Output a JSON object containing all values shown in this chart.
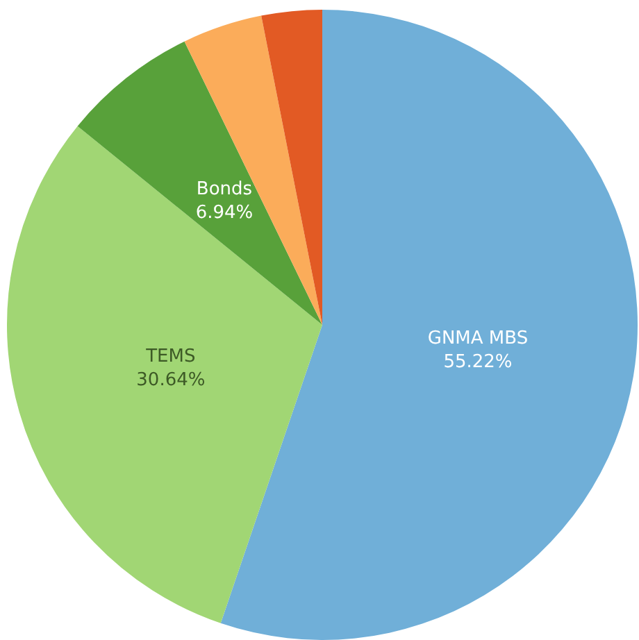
{
  "chart_data": {
    "type": "pie",
    "categories": [
      "GNMA MBS",
      "TEMS",
      "Bonds",
      null,
      null
    ],
    "values": [
      55.22,
      30.64,
      6.94,
      4.1,
      3.1
    ],
    "colors": [
      "#70afd8",
      "#a1d674",
      "#58a13a",
      "#fbac5a",
      "#e25a24"
    ],
    "value_labels": [
      "55.22%",
      "30.64%",
      "6.94%",
      null,
      null
    ],
    "legend": false
  }
}
